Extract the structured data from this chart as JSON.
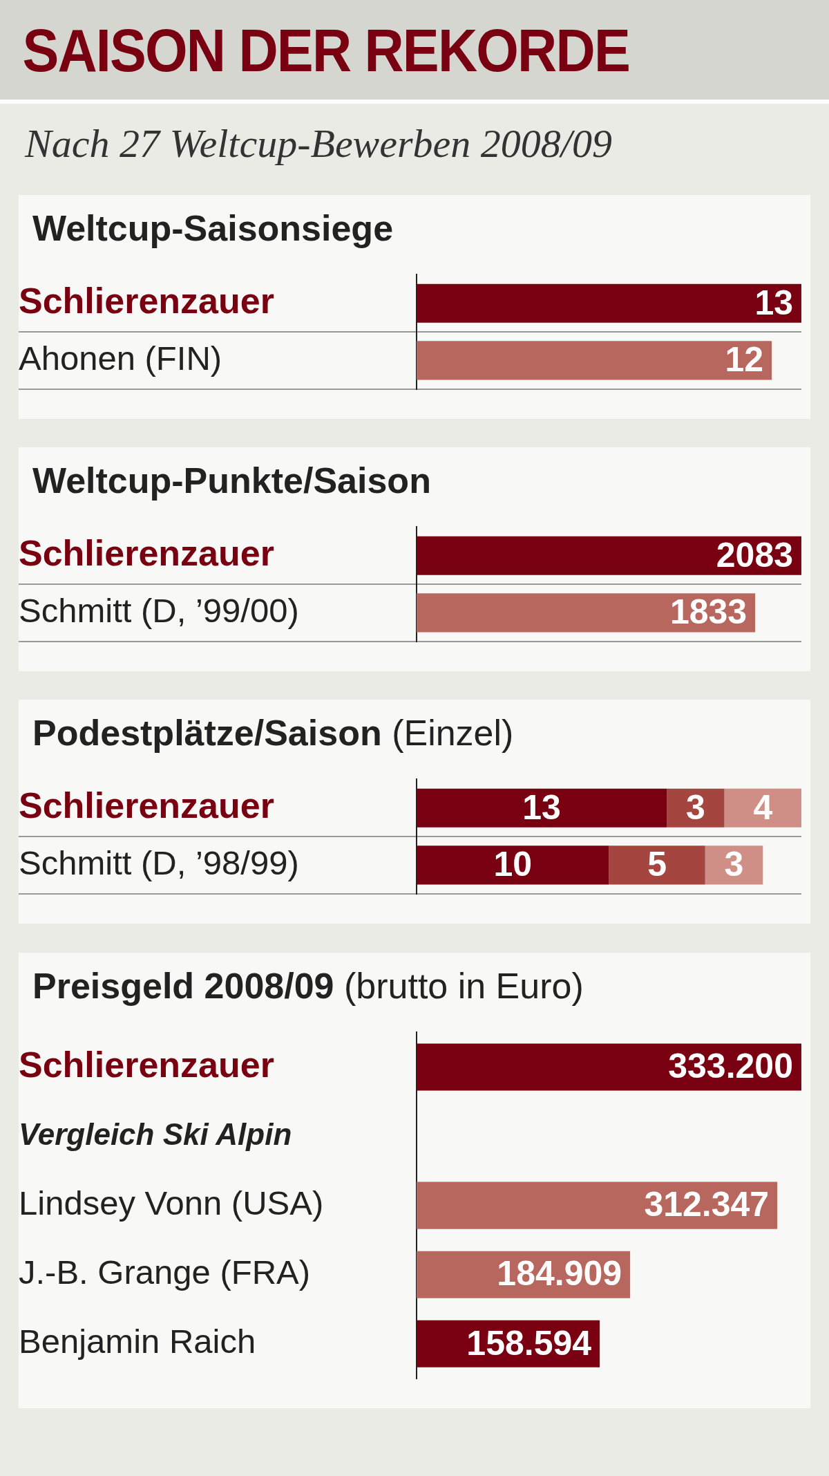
{
  "chart_data": [
    {
      "type": "other",
      "title": "SAISON DER REKORDE",
      "subtitle": "Nach 27 Weltcup-Bewerben 2008/09"
    },
    {
      "type": "bar",
      "orientation": "horizontal",
      "title": "Weltcup-Saisonsiege",
      "categories": [
        "Schlierenzauer",
        "Ahonen (FIN)"
      ],
      "values": [
        13,
        12
      ],
      "colors": [
        "#780010",
        "#b8675f"
      ],
      "data_labels": true,
      "grid": "y",
      "tick_labels": "y"
    },
    {
      "type": "bar",
      "orientation": "horizontal",
      "title": "Weltcup-Punkte/Saison",
      "categories": [
        "Schlierenzauer",
        "Schmitt (D, ’99/00)"
      ],
      "values": [
        2083,
        1833
      ],
      "colors": [
        "#780010",
        "#b8675f"
      ],
      "data_labels": true,
      "grid": "y",
      "tick_labels": "y"
    },
    {
      "type": "bar",
      "orientation": "horizontal",
      "stacked": true,
      "title": "Podestplätze/Saison (Einzel)",
      "categories": [
        "Schlierenzauer",
        "Schmitt (D, ’98/99)"
      ],
      "series": [
        {
          "color": "#780010",
          "values": [
            13,
            10
          ]
        },
        {
          "color": "#a4463f",
          "values": [
            3,
            5
          ]
        },
        {
          "color": "#cf8f87",
          "values": [
            4,
            3
          ]
        }
      ],
      "data_labels": true,
      "grid": "y",
      "tick_labels": "y"
    },
    {
      "type": "bar",
      "orientation": "horizontal",
      "title": "Preisgeld 2008/09 (brutto in Euro)",
      "categories": [
        "Schlierenzauer",
        "Vergleich Ski Alpin",
        "Lindsey Vonn (USA)",
        "J.-B. Grange (FRA)",
        "Benjamin Raich"
      ],
      "values": [
        333200,
        null,
        312347,
        184909,
        158594
      ],
      "value_labels": [
        "333.200",
        null,
        "312.347",
        "184.909",
        "158.594"
      ],
      "colors": [
        "#780010",
        "#b8675f",
        "#b8675f",
        "#b8675f",
        "#780010"
      ],
      "tick_labels": "y"
    }
  ]
}
